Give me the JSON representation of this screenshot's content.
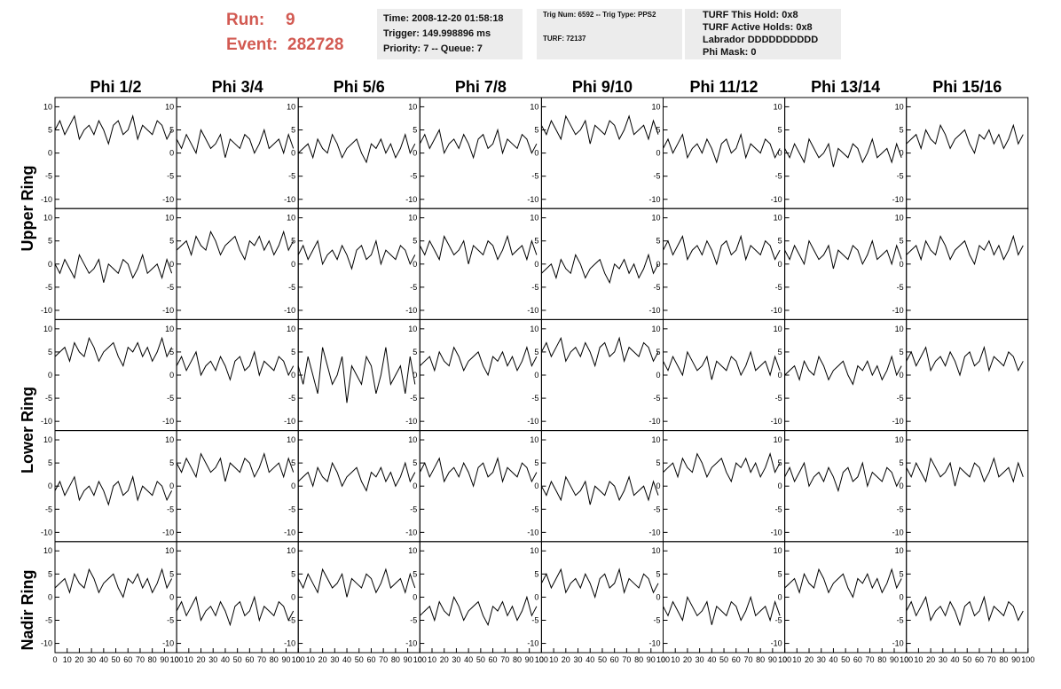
{
  "header": {
    "run_label": "Run:",
    "run": 9,
    "event_label": "Event:",
    "event": 282728,
    "info_1": [
      "Time: 2008-12-20 01:58:18",
      "Trigger: 149.998896 ms",
      "Priority: 7 -- Queue: 7"
    ],
    "info_2": [
      "Trig Num: 6592 -- Trig Type: PPS2",
      "TURF: 72137"
    ],
    "info_3": [
      "TURF This Hold: 0x8",
      "TURF Active Holds: 0x8",
      "Labrador DDDDDDDDDD",
      "Phi Mask: 0"
    ]
  },
  "columns": [
    "Phi 1/2",
    "Phi 3/4",
    "Phi 5/6",
    "Phi 7/8",
    "Phi 9/10",
    "Phi 11/12",
    "Phi 13/14",
    "Phi 15/16"
  ],
  "rows": [
    "Upper Ring",
    "Lower Ring",
    "Nadir Ring"
  ],
  "axis": {
    "xlim": [
      0,
      100
    ],
    "xticks": [
      0,
      10,
      20,
      30,
      40,
      50,
      60,
      70,
      80,
      90,
      100
    ],
    "ylim": [
      -12,
      12
    ],
    "yticks": [
      -10,
      -5,
      0,
      5,
      10
    ]
  },
  "x": [
    0,
    4,
    8,
    12,
    16,
    20,
    24,
    28,
    32,
    36,
    40,
    44,
    48,
    52,
    56,
    60,
    64,
    68,
    72,
    76,
    80,
    84,
    88,
    92,
    96
  ],
  "panels": [
    [
      [
        5,
        7,
        4,
        6,
        8,
        3,
        5,
        6,
        4,
        7,
        5,
        2,
        6,
        7,
        4,
        5,
        8,
        3,
        6,
        5,
        4,
        7,
        6,
        3,
        5
      ],
      [
        3,
        1,
        4,
        2,
        0,
        5,
        3,
        1,
        2,
        4,
        -1,
        3,
        2,
        1,
        4,
        3,
        0,
        2,
        5,
        1,
        2,
        3,
        0,
        4,
        1
      ],
      [
        0,
        1,
        2,
        -1,
        3,
        1,
        0,
        4,
        2,
        -1,
        1,
        2,
        3,
        0,
        -2,
        2,
        1,
        3,
        0,
        2,
        -1,
        1,
        4,
        0,
        2
      ],
      [
        2,
        4,
        1,
        3,
        5,
        0,
        2,
        3,
        1,
        4,
        2,
        -1,
        3,
        4,
        1,
        2,
        5,
        0,
        3,
        2,
        1,
        4,
        3,
        0,
        2
      ],
      [
        6,
        4,
        7,
        5,
        3,
        8,
        6,
        4,
        5,
        7,
        2,
        6,
        5,
        4,
        7,
        6,
        3,
        5,
        8,
        4,
        5,
        6,
        3,
        7,
        4
      ],
      [
        1,
        3,
        0,
        2,
        4,
        -1,
        1,
        2,
        0,
        3,
        1,
        -2,
        2,
        3,
        0,
        1,
        4,
        -1,
        2,
        1,
        0,
        3,
        2,
        -1,
        1
      ],
      [
        1,
        -1,
        2,
        0,
        -2,
        3,
        1,
        -1,
        0,
        2,
        -3,
        1,
        0,
        -1,
        2,
        1,
        -2,
        0,
        3,
        -1,
        0,
        1,
        -2,
        2,
        -1
      ],
      [
        2,
        3,
        4,
        1,
        5,
        3,
        2,
        6,
        4,
        1,
        3,
        4,
        5,
        2,
        0,
        4,
        3,
        5,
        2,
        4,
        1,
        3,
        6,
        2,
        4
      ]
    ],
    [
      [
        0,
        -2,
        1,
        -1,
        -3,
        2,
        0,
        -2,
        -1,
        1,
        -4,
        0,
        -1,
        -2,
        1,
        0,
        -3,
        -1,
        2,
        -2,
        -1,
        0,
        -3,
        1,
        -2
      ],
      [
        3,
        4,
        5,
        2,
        6,
        4,
        3,
        7,
        5,
        2,
        4,
        5,
        6,
        3,
        1,
        5,
        4,
        6,
        3,
        5,
        2,
        4,
        7,
        3,
        5
      ],
      [
        2,
        4,
        1,
        3,
        5,
        0,
        2,
        3,
        1,
        4,
        2,
        -1,
        3,
        4,
        1,
        2,
        5,
        0,
        3,
        2,
        1,
        4,
        3,
        0,
        2
      ],
      [
        4,
        2,
        5,
        3,
        1,
        6,
        4,
        2,
        3,
        5,
        0,
        4,
        3,
        2,
        5,
        4,
        1,
        3,
        6,
        2,
        3,
        4,
        1,
        5,
        2
      ],
      [
        -2,
        -1,
        0,
        -3,
        1,
        -1,
        -2,
        2,
        0,
        -3,
        -1,
        0,
        1,
        -2,
        -4,
        0,
        -1,
        1,
        -2,
        0,
        -3,
        -1,
        2,
        -2,
        0
      ],
      [
        3,
        5,
        2,
        4,
        6,
        1,
        3,
        4,
        2,
        5,
        3,
        0,
        4,
        5,
        2,
        3,
        6,
        1,
        4,
        3,
        2,
        5,
        4,
        1,
        3
      ],
      [
        3,
        1,
        4,
        2,
        0,
        5,
        3,
        1,
        2,
        4,
        -1,
        3,
        2,
        1,
        4,
        3,
        0,
        2,
        5,
        1,
        2,
        3,
        0,
        4,
        1
      ],
      [
        2,
        3,
        4,
        1,
        5,
        3,
        2,
        6,
        4,
        1,
        3,
        4,
        5,
        2,
        0,
        4,
        3,
        5,
        2,
        4,
        1,
        3,
        6,
        2,
        4
      ]
    ],
    [
      [
        4,
        5,
        6,
        3,
        7,
        5,
        4,
        8,
        6,
        3,
        5,
        6,
        7,
        4,
        2,
        6,
        5,
        7,
        4,
        6,
        3,
        5,
        8,
        4,
        6
      ],
      [
        2,
        4,
        1,
        3,
        5,
        0,
        2,
        3,
        1,
        4,
        2,
        -1,
        3,
        4,
        1,
        2,
        5,
        0,
        3,
        2,
        1,
        4,
        3,
        0,
        2
      ],
      [
        2,
        -2,
        4,
        0,
        -4,
        6,
        2,
        -2,
        0,
        4,
        -6,
        2,
        0,
        -2,
        4,
        2,
        -4,
        0,
        6,
        -2,
        0,
        2,
        -4,
        4,
        -2
      ],
      [
        2,
        3,
        4,
        1,
        5,
        3,
        2,
        6,
        4,
        1,
        3,
        4,
        5,
        2,
        0,
        4,
        3,
        5,
        2,
        4,
        1,
        3,
        6,
        2,
        4
      ],
      [
        5,
        7,
        4,
        6,
        8,
        3,
        5,
        6,
        4,
        7,
        5,
        2,
        6,
        7,
        4,
        5,
        8,
        3,
        6,
        5,
        4,
        7,
        6,
        3,
        5
      ],
      [
        3,
        1,
        4,
        2,
        0,
        5,
        3,
        1,
        2,
        4,
        -1,
        3,
        2,
        1,
        4,
        3,
        0,
        2,
        5,
        1,
        2,
        3,
        0,
        4,
        1
      ],
      [
        0,
        1,
        2,
        -1,
        3,
        1,
        0,
        4,
        2,
        -1,
        1,
        2,
        3,
        0,
        -2,
        2,
        1,
        3,
        0,
        2,
        -1,
        1,
        4,
        0,
        2
      ],
      [
        3,
        5,
        2,
        4,
        6,
        1,
        3,
        4,
        2,
        5,
        3,
        0,
        4,
        5,
        2,
        3,
        6,
        1,
        4,
        3,
        2,
        5,
        4,
        1,
        3
      ]
    ],
    [
      [
        -1,
        1,
        -2,
        0,
        2,
        -3,
        -1,
        0,
        -2,
        1,
        -1,
        -4,
        0,
        1,
        -2,
        -1,
        2,
        -3,
        0,
        -1,
        -2,
        1,
        0,
        -3,
        -1
      ],
      [
        5,
        3,
        6,
        4,
        2,
        7,
        5,
        3,
        4,
        6,
        1,
        5,
        4,
        3,
        6,
        5,
        2,
        4,
        7,
        3,
        4,
        5,
        2,
        6,
        3
      ],
      [
        1,
        2,
        3,
        0,
        4,
        2,
        1,
        5,
        3,
        0,
        2,
        3,
        4,
        1,
        -1,
        3,
        2,
        4,
        1,
        3,
        0,
        2,
        5,
        1,
        3
      ],
      [
        3,
        5,
        2,
        4,
        6,
        1,
        3,
        4,
        2,
        5,
        3,
        0,
        4,
        5,
        2,
        3,
        6,
        1,
        4,
        3,
        2,
        5,
        4,
        1,
        3
      ],
      [
        0,
        -2,
        1,
        -1,
        -3,
        2,
        0,
        -2,
        -1,
        1,
        -4,
        0,
        -1,
        -2,
        1,
        0,
        -3,
        -1,
        2,
        -2,
        -1,
        0,
        -3,
        1,
        -2
      ],
      [
        3,
        4,
        5,
        2,
        6,
        4,
        3,
        7,
        5,
        2,
        4,
        5,
        6,
        3,
        1,
        5,
        4,
        6,
        3,
        5,
        2,
        4,
        7,
        3,
        5
      ],
      [
        2,
        4,
        1,
        3,
        5,
        0,
        2,
        3,
        1,
        4,
        2,
        -1,
        3,
        4,
        1,
        2,
        5,
        0,
        3,
        2,
        1,
        4,
        3,
        0,
        2
      ],
      [
        4,
        2,
        5,
        3,
        1,
        6,
        4,
        2,
        3,
        5,
        0,
        4,
        3,
        2,
        5,
        4,
        1,
        3,
        6,
        2,
        3,
        4,
        1,
        5,
        2
      ]
    ],
    [
      [
        2,
        3,
        4,
        1,
        5,
        3,
        2,
        6,
        4,
        1,
        3,
        4,
        5,
        2,
        0,
        4,
        3,
        5,
        2,
        4,
        1,
        3,
        6,
        2,
        4
      ],
      [
        -3,
        -1,
        -4,
        -2,
        0,
        -5,
        -3,
        -2,
        -4,
        -1,
        -3,
        -6,
        -2,
        -1,
        -4,
        -3,
        0,
        -5,
        -2,
        -3,
        -4,
        -1,
        -2,
        -5,
        -3
      ],
      [
        4,
        2,
        5,
        3,
        1,
        6,
        4,
        2,
        3,
        5,
        0,
        4,
        3,
        2,
        5,
        4,
        1,
        3,
        6,
        2,
        3,
        4,
        1,
        5,
        2
      ],
      [
        -4,
        -3,
        -2,
        -5,
        -1,
        -3,
        -4,
        0,
        -2,
        -5,
        -3,
        -2,
        -1,
        -4,
        -6,
        -2,
        -3,
        -1,
        -4,
        -2,
        -5,
        -3,
        0,
        -4,
        -2
      ],
      [
        3,
        5,
        2,
        4,
        6,
        1,
        3,
        4,
        2,
        5,
        3,
        0,
        4,
        5,
        2,
        3,
        6,
        1,
        4,
        3,
        2,
        5,
        4,
        1,
        3
      ],
      [
        -2,
        -4,
        -1,
        -3,
        -5,
        0,
        -2,
        -4,
        -3,
        -1,
        -6,
        -2,
        -3,
        -4,
        -1,
        -2,
        -5,
        -3,
        0,
        -4,
        -3,
        -2,
        -5,
        -1,
        -4
      ],
      [
        2,
        3,
        4,
        1,
        5,
        3,
        2,
        6,
        4,
        1,
        3,
        4,
        5,
        2,
        0,
        4,
        3,
        5,
        2,
        4,
        1,
        3,
        6,
        2,
        4
      ],
      [
        -3,
        -1,
        -4,
        -2,
        0,
        -5,
        -3,
        -2,
        -4,
        -1,
        -3,
        -6,
        -2,
        -1,
        -4,
        -3,
        0,
        -5,
        -2,
        -3,
        -4,
        -1,
        -2,
        -5,
        -3
      ]
    ]
  ]
}
